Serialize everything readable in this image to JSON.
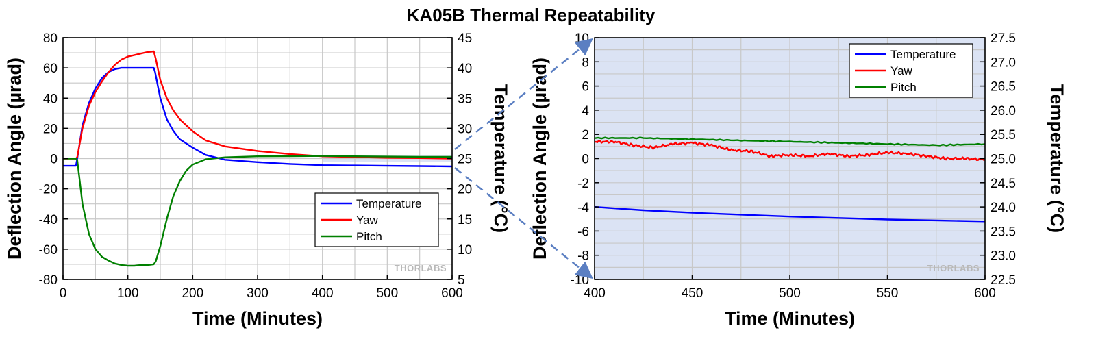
{
  "title": "KA05B Thermal Repeatability",
  "colors": {
    "temperature": "#0000ff",
    "yaw": "#ff0000",
    "pitch": "#008000",
    "zoom_region": "#dbe3f4",
    "grid": "#c8c8c8",
    "connector": "#5b7fc2"
  },
  "watermark": "THORLABS",
  "chart_data": [
    {
      "type": "line",
      "xlabel": "Time (Minutes)",
      "ylabel": "Deflection Angle (µrad)",
      "y2label": "Temperature (°C)",
      "xlim": [
        0,
        600
      ],
      "ylim": [
        -80,
        80
      ],
      "y2lim": [
        5,
        45
      ],
      "xticks": [
        0,
        100,
        200,
        300,
        400,
        500,
        600
      ],
      "yticks": [
        -80,
        -60,
        -40,
        -20,
        0,
        20,
        40,
        60,
        80
      ],
      "y2ticks": [
        5,
        10,
        15,
        20,
        25,
        30,
        35,
        40,
        45
      ],
      "grid": true,
      "legend_position": "bottom-right",
      "highlight_region": {
        "x": [
          400,
          600
        ],
        "y": [
          -2.5,
          2.5
        ]
      },
      "series": [
        {
          "name": "Temperature",
          "axis": "right",
          "x": [
            0,
            20,
            22,
            30,
            40,
            50,
            60,
            70,
            80,
            90,
            100,
            110,
            120,
            140,
            142,
            150,
            160,
            170,
            180,
            200,
            220,
            250,
            300,
            350,
            400,
            450,
            500,
            550,
            600
          ],
          "values": [
            23.8,
            23.8,
            25,
            30.5,
            34.2,
            36.6,
            38.3,
            39.3,
            39.8,
            40.0,
            40.0,
            40.0,
            40.0,
            40.0,
            39.3,
            35.0,
            31.5,
            29.6,
            28.2,
            26.8,
            25.6,
            24.8,
            24.4,
            24.1,
            23.9,
            23.85,
            23.8,
            23.75,
            23.7
          ]
        },
        {
          "name": "Yaw",
          "axis": "left",
          "x": [
            0,
            20,
            22,
            30,
            40,
            50,
            60,
            70,
            80,
            90,
            100,
            110,
            120,
            130,
            140,
            143,
            150,
            160,
            170,
            180,
            200,
            220,
            250,
            300,
            350,
            400,
            450,
            500,
            550,
            600
          ],
          "values": [
            0,
            0,
            1,
            20,
            35,
            44,
            51,
            57,
            62,
            65.5,
            67.5,
            68.5,
            69.5,
            70.5,
            71,
            66,
            52,
            40,
            32,
            26,
            18,
            12,
            8,
            5,
            3,
            1.5,
            1.0,
            0.5,
            0.3,
            0
          ]
        },
        {
          "name": "Pitch",
          "axis": "left",
          "x": [
            0,
            20,
            22,
            30,
            40,
            50,
            60,
            70,
            80,
            90,
            100,
            110,
            120,
            130,
            140,
            143,
            150,
            160,
            170,
            180,
            190,
            200,
            220,
            250,
            300,
            350,
            400,
            450,
            500,
            550,
            600
          ],
          "values": [
            0,
            0,
            -1,
            -30,
            -50,
            -60,
            -65,
            -67.5,
            -69.5,
            -70.5,
            -71,
            -71,
            -70.5,
            -70.5,
            -70,
            -68,
            -58,
            -40,
            -25,
            -15,
            -8,
            -4,
            -0.5,
            0.8,
            1.5,
            1.6,
            1.7,
            1.5,
            1.3,
            1.2,
            1.2
          ]
        }
      ]
    },
    {
      "type": "line",
      "xlabel": "Time (Minutes)",
      "ylabel": "Deflection Angle (µrad)",
      "y2label": "Temperature (°C)",
      "xlim": [
        400,
        600
      ],
      "ylim": [
        -10,
        10
      ],
      "y2lim": [
        22.5,
        27.5
      ],
      "xticks": [
        400,
        450,
        500,
        550,
        600
      ],
      "yticks": [
        -10,
        -8,
        -6,
        -4,
        -2,
        0,
        2,
        4,
        6,
        8,
        10
      ],
      "y2ticks": [
        22.5,
        23.0,
        23.5,
        24.0,
        24.5,
        25.0,
        25.5,
        26.0,
        26.5,
        27.0,
        27.5
      ],
      "grid": true,
      "legend_position": "top-right",
      "series": [
        {
          "name": "Temperature",
          "axis": "right",
          "x": [
            400,
            425,
            450,
            475,
            500,
            525,
            550,
            575,
            600
          ],
          "values": [
            24.0,
            23.93,
            23.88,
            23.84,
            23.8,
            23.77,
            23.74,
            23.72,
            23.7
          ]
        },
        {
          "name": "Yaw",
          "axis": "left",
          "x": [
            400,
            410,
            420,
            430,
            440,
            450,
            460,
            470,
            480,
            490,
            500,
            510,
            520,
            530,
            540,
            550,
            560,
            570,
            580,
            590,
            600
          ],
          "values": [
            1.4,
            1.4,
            1.1,
            0.9,
            1.2,
            1.3,
            1.1,
            0.7,
            0.6,
            0.2,
            0.3,
            0.2,
            0.4,
            0.2,
            0.3,
            0.5,
            0.4,
            0.2,
            0.0,
            0.0,
            -0.1
          ]
        },
        {
          "name": "Pitch",
          "axis": "left",
          "x": [
            400,
            425,
            450,
            475,
            500,
            525,
            550,
            575,
            600
          ],
          "values": [
            1.7,
            1.7,
            1.6,
            1.5,
            1.4,
            1.3,
            1.2,
            1.1,
            1.2
          ]
        }
      ]
    }
  ]
}
